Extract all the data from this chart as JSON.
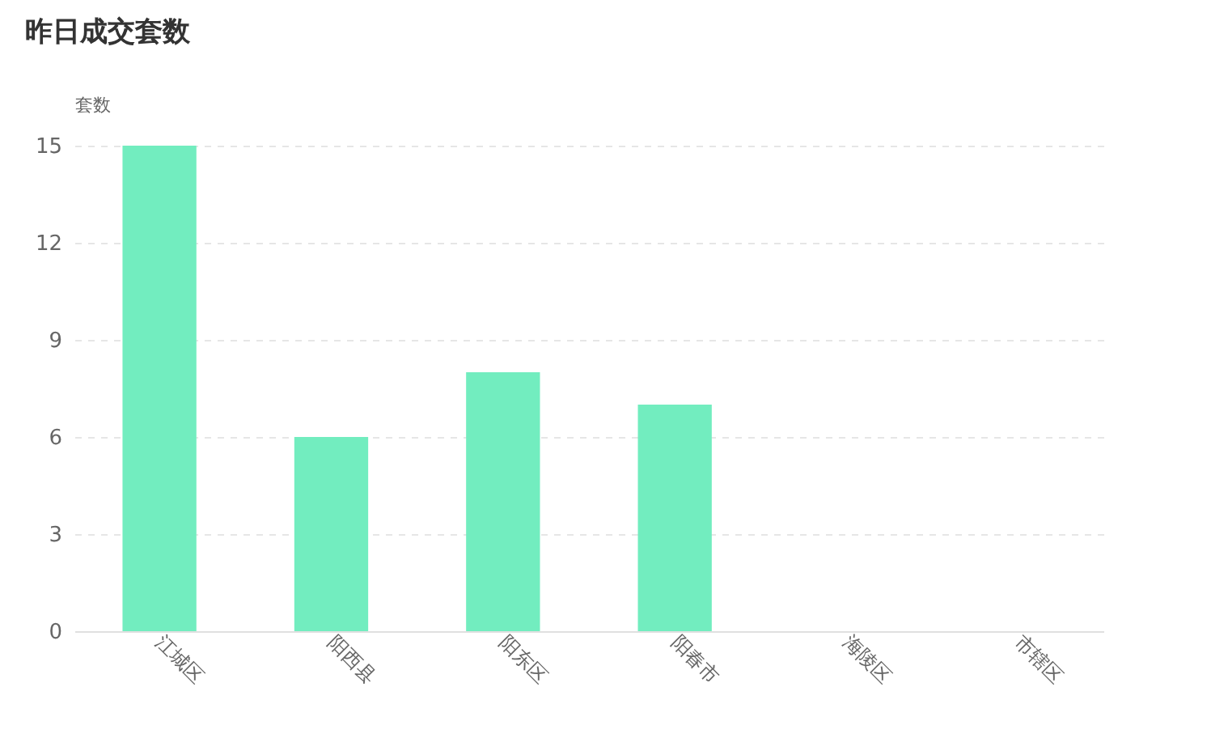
{
  "chart_data": {
    "type": "bar",
    "title": "昨日成交套数",
    "ylabel": "套数",
    "categories": [
      "江城区",
      "阳西县",
      "阳东区",
      "阳春市",
      "海陵区",
      "市辖区"
    ],
    "values": [
      15,
      6,
      8,
      7,
      0,
      0
    ],
    "color": "#72edbf",
    "ylim": [
      0,
      15
    ],
    "yticks": [
      0,
      3,
      6,
      9,
      12,
      15
    ],
    "grid": "y"
  }
}
